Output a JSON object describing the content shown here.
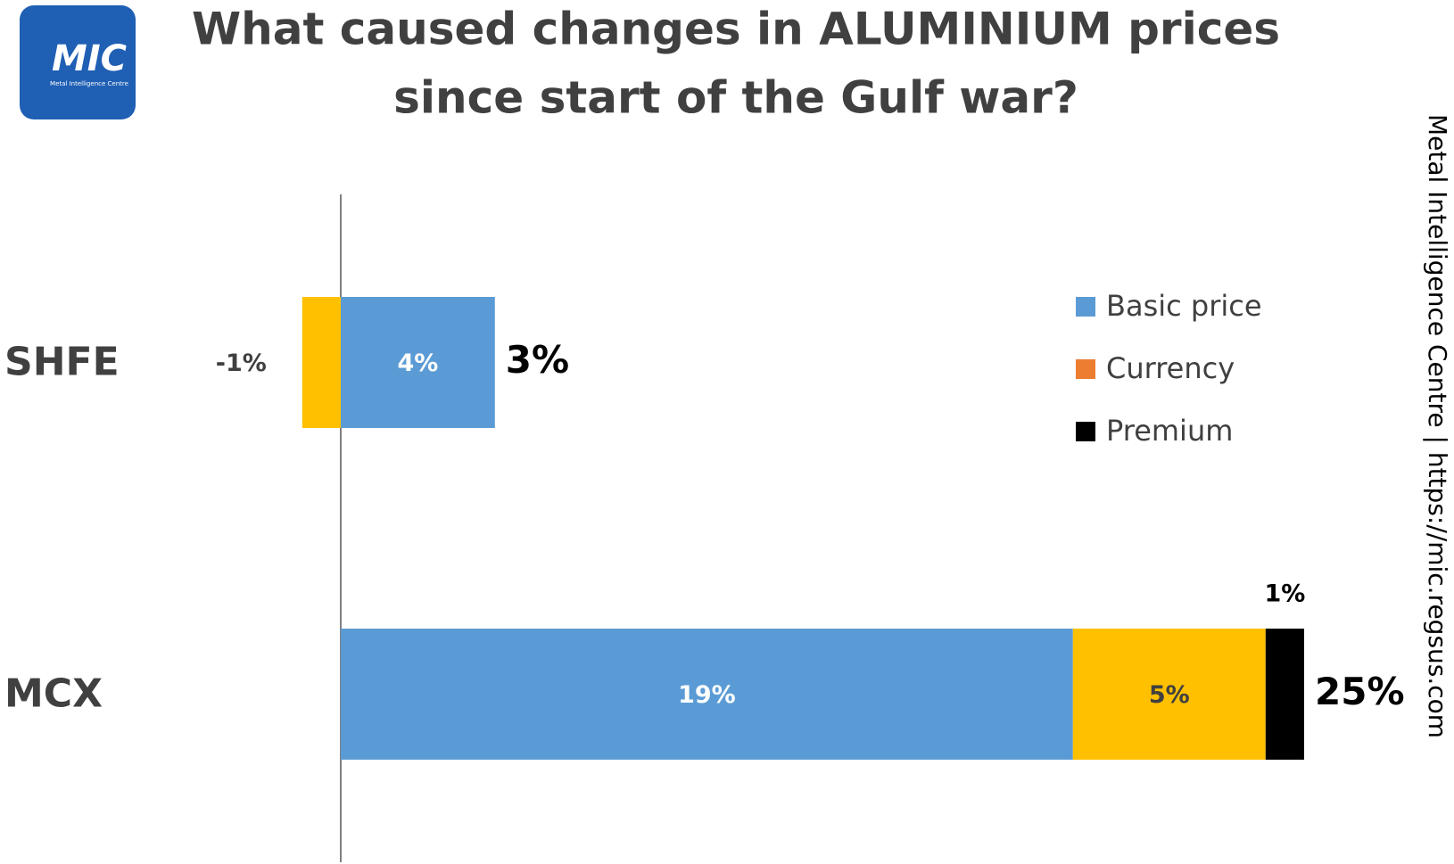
{
  "logo": {
    "text": "MIC",
    "subtext": "Metal Intelligence Centre"
  },
  "side_text": "Metal Intelligence Centre  |  https://mic.regsus.com",
  "chart_data": {
    "type": "stacked-bar-horizontal",
    "title": [
      "What caused changes in ALUMINIUM prices",
      "since start of the Gulf war?"
    ],
    "categories": [
      "SHFE",
      "MCX"
    ],
    "series": [
      {
        "name": "Basic price",
        "color": "#5b9bd5",
        "label_color": "#ffffff",
        "values": [
          4,
          19
        ],
        "value_labels": [
          "4%",
          "19%"
        ]
      },
      {
        "name": "Currency",
        "color": "#ffc000",
        "legend_color": "#ed7d31",
        "label_color": "#404040",
        "values": [
          -1,
          5
        ],
        "value_labels": [
          "-1%",
          "5%"
        ]
      },
      {
        "name": "Premium",
        "color": "#000000",
        "label_color": "#000000",
        "values": [
          null,
          1
        ],
        "value_labels": [
          null,
          "1%"
        ]
      }
    ],
    "totals": [
      3,
      25
    ],
    "total_labels": [
      "3%",
      "25%"
    ],
    "legend": "right"
  }
}
